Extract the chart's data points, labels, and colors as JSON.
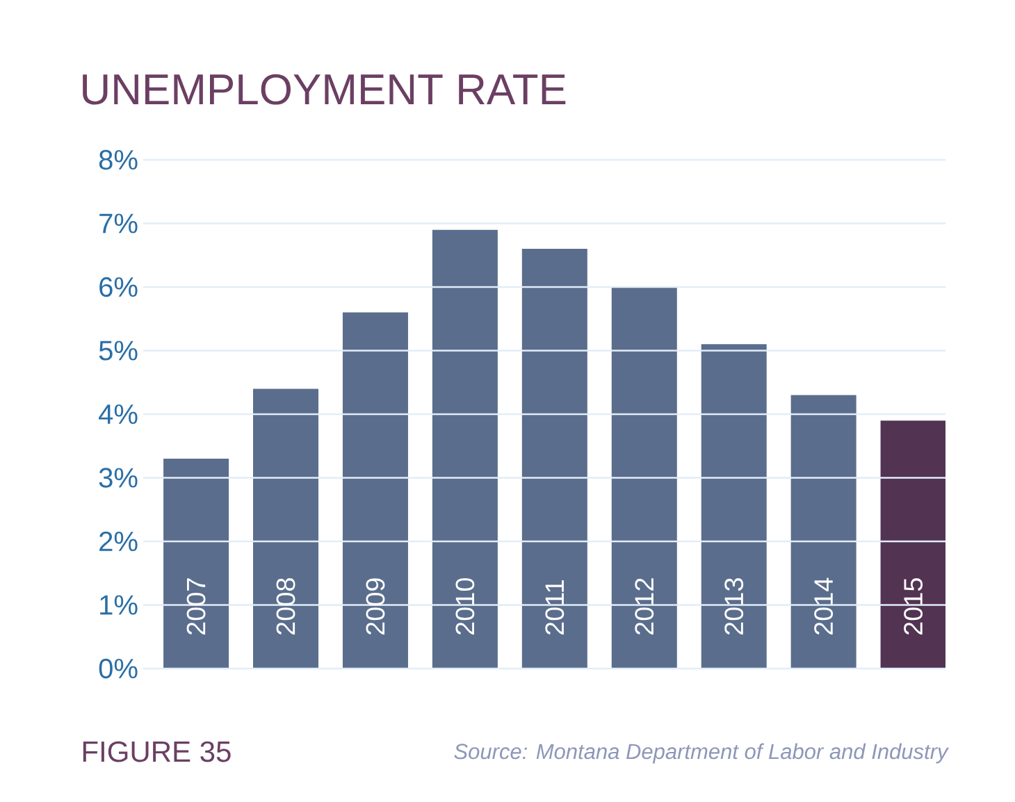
{
  "chart_data": {
    "type": "bar",
    "title": "UNEMPLOYMENT RATE",
    "categories": [
      "2007",
      "2008",
      "2009",
      "2010",
      "2011",
      "2012",
      "2013",
      "2014",
      "2015"
    ],
    "values": [
      3.3,
      4.4,
      5.6,
      6.9,
      6.6,
      6.0,
      5.1,
      4.3,
      3.9
    ],
    "colors": [
      "#5a6d8c",
      "#5a6d8c",
      "#5a6d8c",
      "#5a6d8c",
      "#5a6d8c",
      "#5a6d8c",
      "#5a6d8c",
      "#5a6d8c",
      "#523352"
    ],
    "ylim": [
      0,
      8
    ],
    "yticks": [
      {
        "value": 0,
        "label": "0%"
      },
      {
        "value": 1,
        "label": "1%"
      },
      {
        "value": 2,
        "label": "2%"
      },
      {
        "value": 3,
        "label": "3%"
      },
      {
        "value": 4,
        "label": "4%"
      },
      {
        "value": 5,
        "label": "5%"
      },
      {
        "value": 6,
        "label": "6%"
      },
      {
        "value": 7,
        "label": "7%"
      },
      {
        "value": 8,
        "label": "8%"
      }
    ],
    "grid": "y",
    "annotations": [
      "FIGURE 35",
      "Source: Montana Department of Labor and Industry"
    ]
  }
}
